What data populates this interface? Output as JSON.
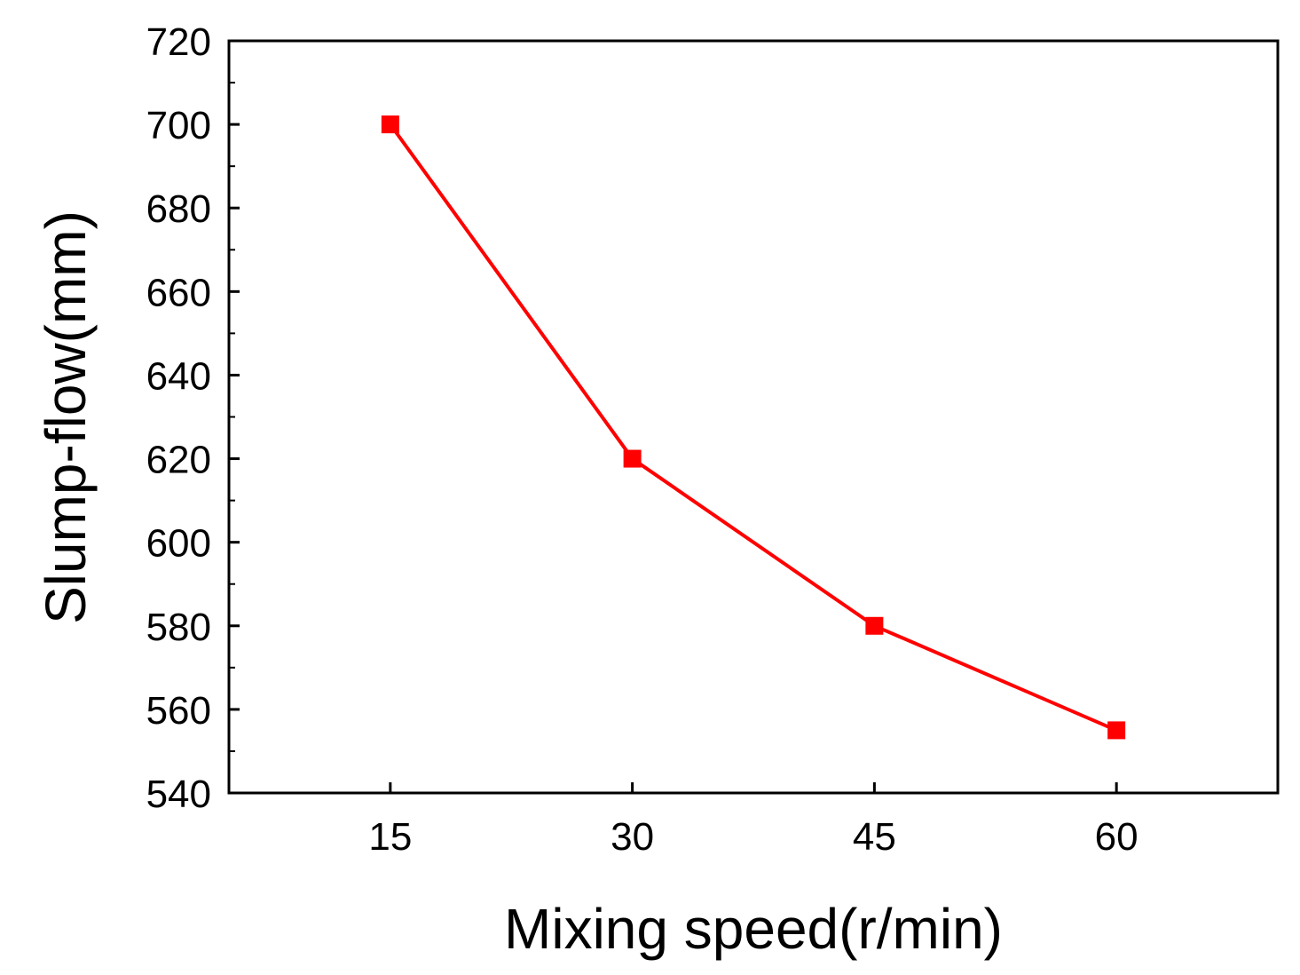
{
  "chart_data": {
    "type": "line",
    "title": "",
    "xlabel": "Mixing speed(r/min)",
    "ylabel": "Slump-flow(mm)",
    "x": [
      15,
      30,
      45,
      60
    ],
    "xticks": [
      "15",
      "30",
      "45",
      "60"
    ],
    "xlim": [
      5,
      70
    ],
    "ylim": [
      540,
      720
    ],
    "yticks": [
      "540",
      "560",
      "580",
      "600",
      "620",
      "640",
      "660",
      "680",
      "700",
      "720"
    ],
    "grid": false,
    "marker": "square",
    "series": [
      {
        "values": [
          700,
          620,
          580,
          555
        ],
        "color": "#ff0000"
      }
    ]
  }
}
